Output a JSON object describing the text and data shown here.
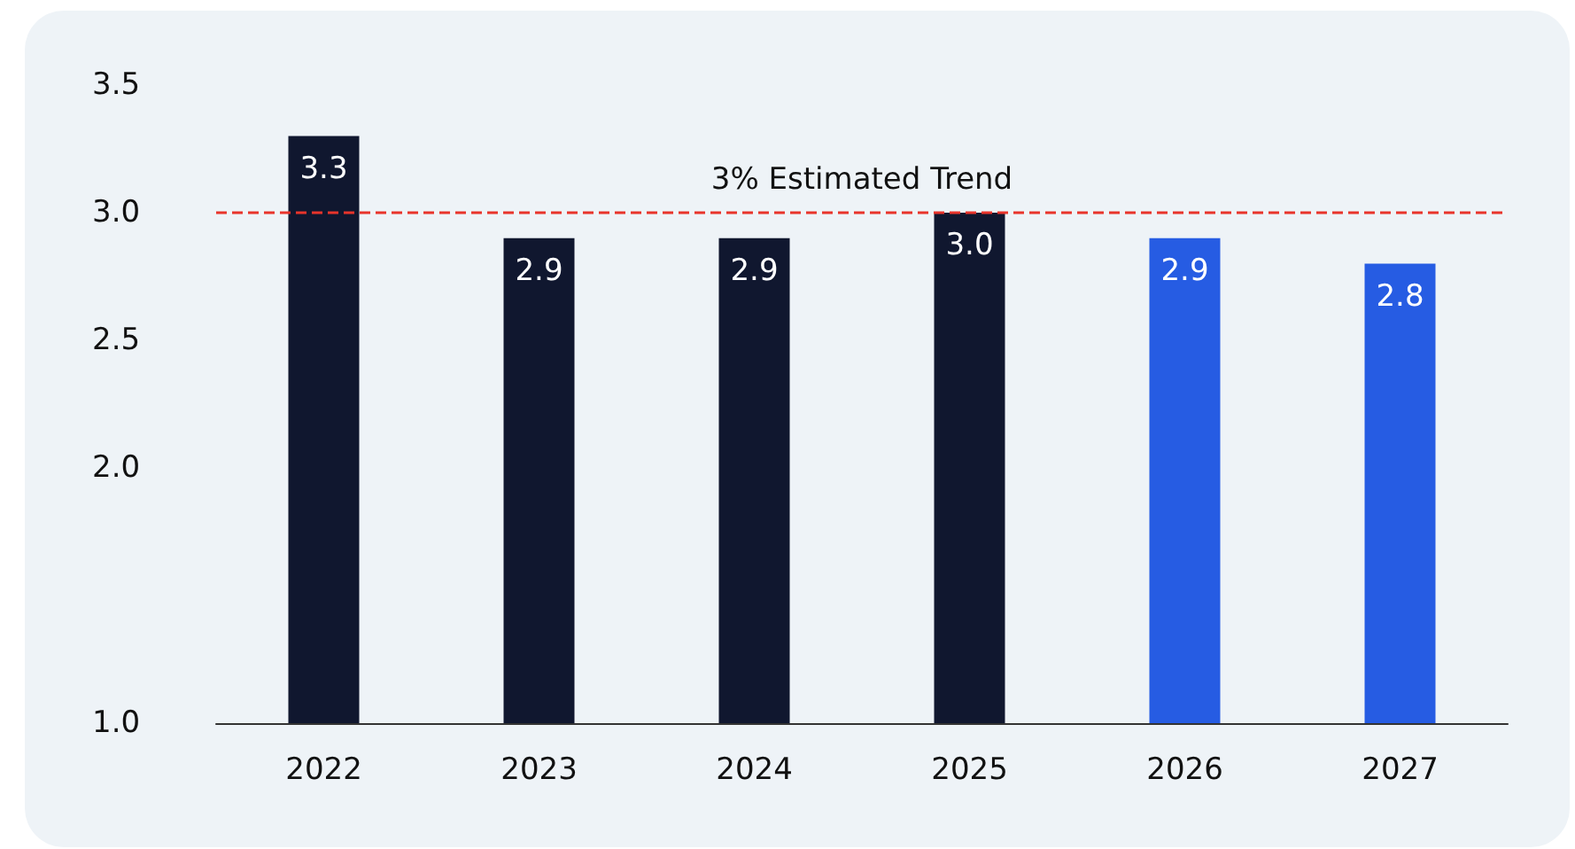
{
  "chart_data": {
    "type": "bar",
    "categories": [
      "2022",
      "2023",
      "2024",
      "2025",
      "2026",
      "2027"
    ],
    "values": [
      3.3,
      2.9,
      2.9,
      3.0,
      2.9,
      2.8
    ],
    "colors": [
      "#10172f",
      "#10172f",
      "#10172f",
      "#10172f",
      "#265ce3",
      "#265ce3"
    ],
    "ylim": [
      1.0,
      3.5
    ],
    "yticks": [
      {
        "value": 1.0,
        "label": "1.0"
      },
      {
        "value": 2.0,
        "label": "2.0"
      },
      {
        "value": 2.5,
        "label": "2.5"
      },
      {
        "value": 3.0,
        "label": "3.0"
      },
      {
        "value": 3.5,
        "label": "3.5"
      }
    ],
    "grid": false,
    "value_labels": [
      "3.3",
      "2.9",
      "2.9",
      "3.0",
      "2.9",
      "2.8"
    ],
    "ref_lines": [
      {
        "axis": "y",
        "value": 3.0,
        "label": "3% Estimated Trend",
        "color": "#e8342b",
        "line_style": "dashed"
      }
    ]
  }
}
